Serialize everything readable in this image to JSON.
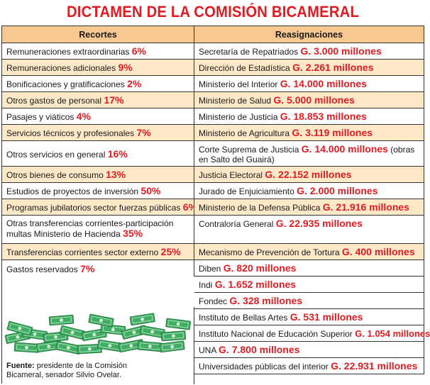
{
  "title": "DICTAMEN DE LA COMISIÓN BICAMERAL",
  "headers": {
    "left": "Recortes",
    "right": "Reasignaciones"
  },
  "recortes": [
    {
      "label": "Remuneraciones extraordinarias",
      "value": "6%"
    },
    {
      "label": "Remuneraciones adicionales",
      "value": "9%"
    },
    {
      "label": "Bonificaciones y gratificaciones",
      "value": "2%"
    },
    {
      "label": "Otros gastos de personal",
      "value": "17%"
    },
    {
      "label": "Pasajes y viáticos",
      "value": "4%"
    },
    {
      "label": "Servicios técnicos y profesionales",
      "value": "7%"
    },
    {
      "label": "Otros servicios en general",
      "value": "16%"
    },
    {
      "label": "Otros bienes de consumo",
      "value": "13%"
    },
    {
      "label": "Estudios de proyectos de inversión",
      "value": "50%"
    },
    {
      "label": "Programas jubilatorios sector fuerzas públicas",
      "value": "6%"
    },
    {
      "label": "Otras transferencias corrientes-participación multas Ministerio de Hacienda",
      "value": "35%"
    },
    {
      "label": "Transferencias corrientes sector externo",
      "value": "25%"
    },
    {
      "label": "Gastos reservados",
      "value": "7%"
    }
  ],
  "reasignaciones": [
    {
      "label": "Secretaría de Repatriados",
      "value": "G. 3.000 millones",
      "extra": ""
    },
    {
      "label": "Dirección de Estadística",
      "value": "G. 2.261 millones",
      "extra": ""
    },
    {
      "label": "Ministerio del Interior",
      "value": "G. 14.000 millones",
      "extra": ""
    },
    {
      "label": "Ministerio de Salud",
      "value": "G. 5.000 millones",
      "extra": ""
    },
    {
      "label": "Ministerio de Justicia",
      "value": "G. 18.853 millones",
      "extra": ""
    },
    {
      "label": "Ministerio de Agricultura",
      "value": "G. 3.119 millones",
      "extra": ""
    },
    {
      "label": "Corte Suprema de Justicia",
      "value": "G. 14.000 millones",
      "extra": "(obras en Salto del Guairá)"
    },
    {
      "label": "Justicia Electoral",
      "value": "G. 22.152 millones",
      "extra": ""
    },
    {
      "label": "Jurado de Enjuiciamiento",
      "value": "G. 2.000 millones",
      "extra": ""
    },
    {
      "label": "Ministerio de la Defensa Pública",
      "value": "G. 21.916 millones",
      "extra": ""
    },
    {
      "label": "Contraloría General",
      "value": "G. 22.935 millones",
      "extra": ""
    },
    {
      "label": "Mecanismo de Prevención de Tortura",
      "value": "G. 400 millones",
      "extra": ""
    },
    {
      "label": "Diben",
      "value": "G. 820 millones",
      "extra": ""
    },
    {
      "label": "Indi",
      "value": "G. 1.652 millones",
      "extra": ""
    },
    {
      "label": "Fondec",
      "value": "G. 328 millones",
      "extra": ""
    },
    {
      "label": "Instituto de Bellas Artes",
      "value": "G. 531 millones",
      "extra": ""
    },
    {
      "label": "Instituto Nacional de Educación Superior",
      "value": "G. 1.054 millones",
      "extra": ""
    },
    {
      "label": "UNA",
      "value": "G. 7.800 millones",
      "extra": ""
    },
    {
      "label": "Universidades públicas del interior",
      "value": "G. 22.931 millones",
      "extra": ""
    }
  ],
  "source": {
    "label": "Fuente:",
    "text": "presidente de la Comisión Bicameral, senador Silvio Ovelar."
  },
  "colors": {
    "title": "#e11b22",
    "header_bg": "#f7c88f",
    "alt_row_bg": "#fde8c8",
    "money_green": "#3fae62"
  },
  "illustration": "money-pile-icon"
}
